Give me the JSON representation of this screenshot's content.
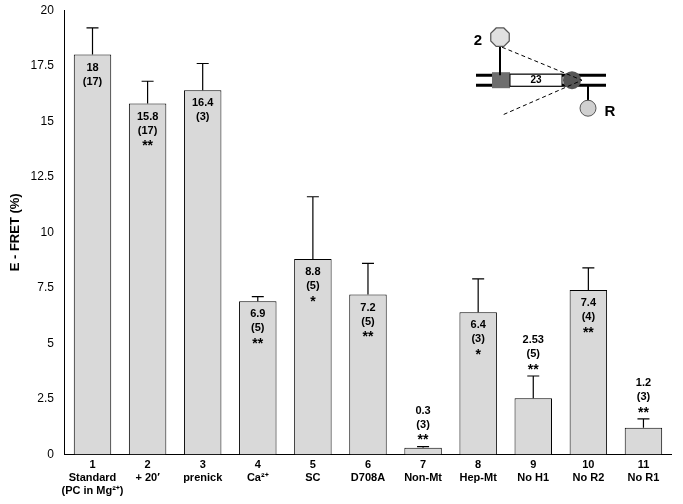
{
  "chart_data": {
    "type": "bar",
    "categories": [
      [
        "1",
        "Standard",
        "(PC in Mg²⁺)"
      ],
      [
        "2",
        "+ 20′"
      ],
      [
        "3",
        "prenick"
      ],
      [
        "4",
        "Ca²⁺"
      ],
      [
        "5",
        "SC"
      ],
      [
        "6",
        "D708A"
      ],
      [
        "7",
        "Non-Mt"
      ],
      [
        "8",
        "Hep-Mt"
      ],
      [
        "9",
        "No H1"
      ],
      [
        "10",
        "No R2"
      ],
      [
        "11",
        "No R1"
      ]
    ],
    "values": [
      18,
      15.8,
      16.4,
      6.9,
      8.8,
      7.2,
      0.3,
      6.4,
      2.53,
      7.4,
      1.2
    ],
    "errors": [
      1.2,
      1.0,
      1.2,
      0.2,
      2.8,
      1.4,
      0.05,
      1.5,
      1.0,
      1.0,
      0.4
    ],
    "n_labels": [
      "(17)",
      "(17)",
      "(3)",
      "(5)",
      "(5)",
      "(5)",
      "(3)",
      "(3)",
      "(5)",
      "(4)",
      "(3)"
    ],
    "significance": [
      null,
      "**",
      null,
      "**",
      "*",
      "**",
      "**",
      "*",
      "**",
      "**",
      "**"
    ],
    "color": "#d9d9d9",
    "y_label": "E - FRET (%)",
    "ylim": [
      0,
      20
    ],
    "yticks": [
      0,
      2.5,
      5,
      7.5,
      10,
      12.5,
      15,
      17.5,
      20
    ],
    "grid": false,
    "data_labels": true,
    "inset_labels": {
      "probe_left": "2",
      "distance": "23",
      "probe_right": "R"
    }
  }
}
